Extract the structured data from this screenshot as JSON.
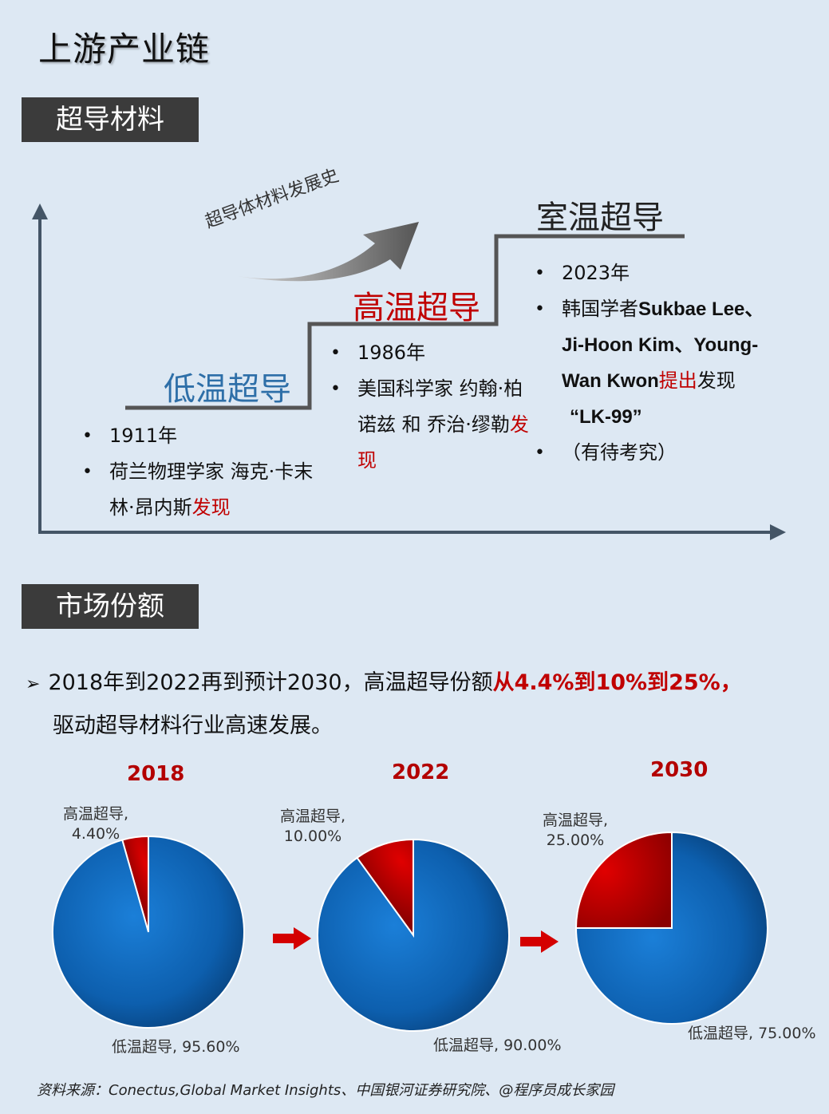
{
  "page_title": "上游产业链",
  "sections": {
    "materials": "超导材料",
    "market": "市场份额"
  },
  "history": {
    "arrow_label": "超导体材料发展史",
    "low_temp": {
      "title": "低温超导",
      "year": "1911年",
      "desc_plain": "荷兰物理学家 海克·卡末林·昂内斯",
      "desc_red": "发现"
    },
    "high_temp": {
      "title": "高温超导",
      "year": "1986年",
      "desc_plain": "美国科学家 约翰·柏诺兹 和 乔治·缪勒",
      "desc_red": "发现"
    },
    "room_temp": {
      "title": "室温超导",
      "year": "2023年",
      "desc_prefix": "韩国学者",
      "desc_names": "Sukbae Lee、Ji-Hoon Kim、Young-Wan Kwon",
      "desc_red": "提出",
      "desc_suffix": "发现",
      "desc_item": "“LK-99”",
      "note": "（有待考究）"
    }
  },
  "market": {
    "text_plain": "2018年到2022再到预计2030，高温超导份额",
    "text_red": "从4.4%到10%到25%，",
    "text_line2": "驱动超导材料行业高速发展。"
  },
  "chart_data": [
    {
      "type": "pie",
      "title": "2018",
      "slices": [
        {
          "name": "高温超导",
          "value": 4.4,
          "label": "高温超导,",
          "value_label": "4.40%"
        },
        {
          "name": "低温超导",
          "value": 95.6,
          "label": "低温超导, 95.60%"
        }
      ]
    },
    {
      "type": "pie",
      "title": "2022",
      "slices": [
        {
          "name": "高温超导",
          "value": 10.0,
          "label": "高温超导,",
          "value_label": "10.00%"
        },
        {
          "name": "低温超导",
          "value": 90.0,
          "label": "低温超导, 90.00%"
        }
      ]
    },
    {
      "type": "pie",
      "title": "2030",
      "slices": [
        {
          "name": "高温超导",
          "value": 25.0,
          "label": "高温超导,",
          "value_label": "25.00%"
        },
        {
          "name": "低温超导",
          "value": 75.0,
          "label": "低温超导, 75.00%"
        }
      ]
    }
  ],
  "colors": {
    "high_temp": "#c00000",
    "low_temp": "#0a5fb0",
    "low_temp_title": "#2e6fa8",
    "accent_red": "#c00000"
  },
  "source": "资料来源：Conectus,Global Market Insights、中国银河证券研究院、@程序员成长家园"
}
